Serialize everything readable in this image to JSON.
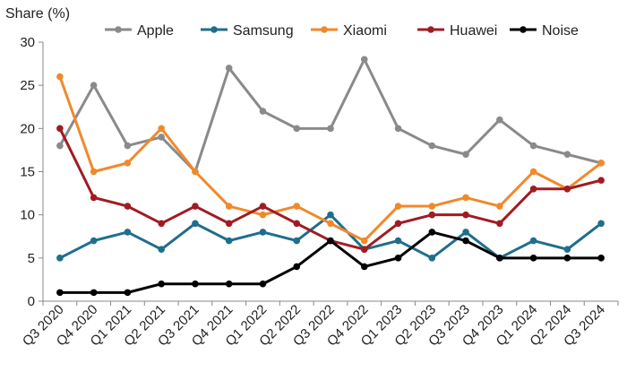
{
  "chart_data": {
    "type": "line",
    "ylabel": "Share (%)",
    "ylim": [
      0,
      30
    ],
    "yticks": [
      0,
      5,
      10,
      15,
      20,
      25,
      30
    ],
    "grid": false,
    "legend": "top",
    "categories": [
      "Q3 2020",
      "Q4 2020",
      "Q1 2021",
      "Q2 2021",
      "Q3 2021",
      "Q4 2021",
      "Q1 2022",
      "Q2 2022",
      "Q3 2022",
      "Q4 2022",
      "Q1 2023",
      "Q2 2023",
      "Q3 2023",
      "Q4 2023",
      "Q1 2024",
      "Q2 2024",
      "Q3 2024"
    ],
    "series": [
      {
        "name": "Apple",
        "color": "#8a8a8a",
        "values": [
          18,
          25,
          18,
          19,
          15,
          27,
          22,
          20,
          20,
          28,
          20,
          18,
          17,
          21,
          18,
          17,
          16
        ]
      },
      {
        "name": "Samsung",
        "color": "#1f6e8c",
        "values": [
          5,
          7,
          8,
          6,
          9,
          7,
          8,
          7,
          10,
          6,
          7,
          5,
          8,
          5,
          7,
          6,
          9
        ]
      },
      {
        "name": "Xiaomi",
        "color": "#f0892c",
        "values": [
          26,
          15,
          16,
          20,
          15,
          11,
          10,
          11,
          9,
          7,
          11,
          11,
          12,
          11,
          15,
          13,
          16
        ]
      },
      {
        "name": "Huawei",
        "color": "#a01c22",
        "values": [
          20,
          12,
          11,
          9,
          11,
          9,
          11,
          9,
          7,
          6,
          9,
          10,
          10,
          9,
          13,
          13,
          14
        ]
      },
      {
        "name": "Noise",
        "color": "#000000",
        "values": [
          1,
          1,
          1,
          2,
          2,
          2,
          2,
          4,
          7,
          4,
          5,
          8,
          7,
          5,
          5,
          5,
          5
        ]
      }
    ]
  }
}
